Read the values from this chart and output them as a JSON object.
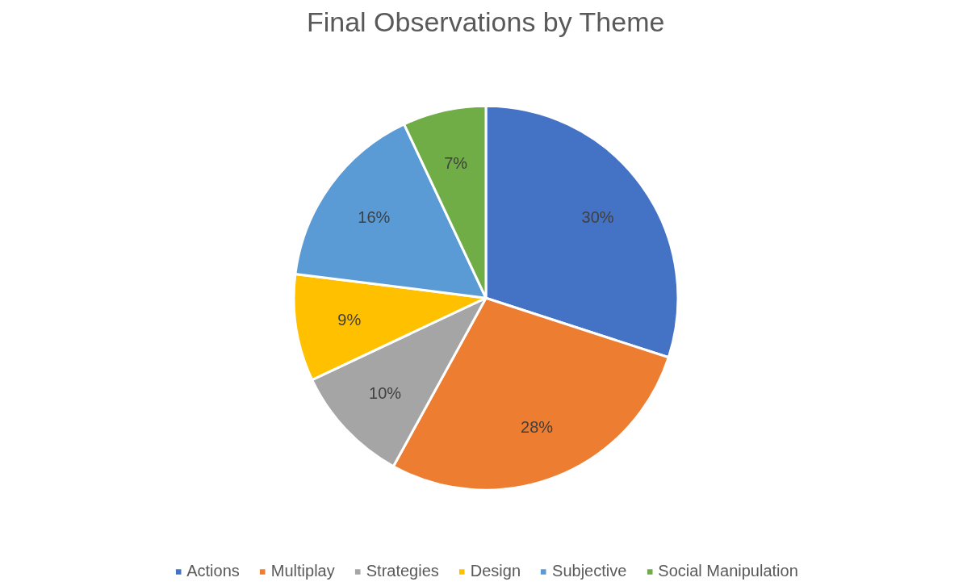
{
  "chart_data": {
    "type": "pie",
    "title": "Final Observations by Theme",
    "categories": [
      "Actions",
      "Multiplay",
      "Strategies",
      "Design",
      "Subjective",
      "Social Manipulation"
    ],
    "values": [
      30,
      28,
      10,
      9,
      16,
      7
    ],
    "colors": [
      "#4472c4",
      "#ed7d31",
      "#a5a5a5",
      "#ffc000",
      "#5b9bd5",
      "#70ad47"
    ],
    "value_labels": [
      "30%",
      "28%",
      "10%",
      "9%",
      "16%",
      "7%"
    ],
    "legend": "bottom"
  }
}
